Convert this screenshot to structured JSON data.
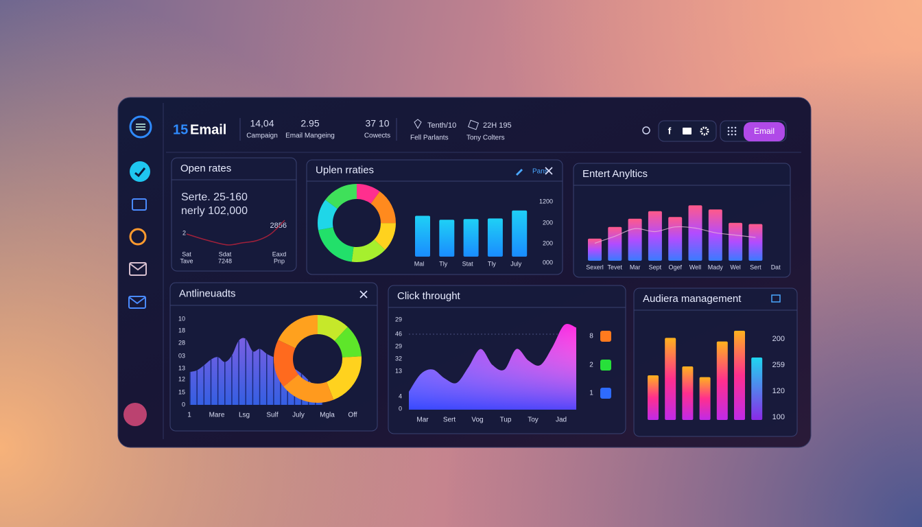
{
  "header": {
    "logo_num": "15",
    "logo": "Email",
    "stats": [
      {
        "value": "14,04",
        "label": "Campaign"
      },
      {
        "value": "2.95",
        "label": "Email Mangeing"
      },
      {
        "value": "37 10",
        "label": "Cowects"
      }
    ],
    "stats2": [
      {
        "value": "Tenth/10",
        "label": "Fell Parlants"
      },
      {
        "value": "22H 195",
        "label": "Tony Colters"
      }
    ],
    "button": "Email"
  },
  "open_rates": {
    "title": "Open rates",
    "line1": "Serte. 25-160",
    "line2": "nerly 102,000",
    "note": "2856",
    "axis": "2",
    "x_labels": [
      [
        "Sat",
        "Tave"
      ],
      [
        "Sdat",
        "7248"
      ],
      [
        "Eaxd",
        "Pnp"
      ]
    ],
    "line": [
      30,
      22,
      15,
      10,
      14,
      18,
      30,
      55
    ]
  },
  "uplen": {
    "title": "Uplen rraties",
    "link": "Pans",
    "donut": [
      {
        "color": "#ff2f8e",
        "value": 10
      },
      {
        "color": "#ff8a1e",
        "value": 15
      },
      {
        "color": "#ffd21e",
        "value": 12
      },
      {
        "color": "#a6ef2e",
        "value": 15
      },
      {
        "color": "#22e06a",
        "value": 20
      },
      {
        "color": "#1fd6e8",
        "value": 13
      },
      {
        "color": "#3fe05a",
        "value": 15
      }
    ],
    "categories": [
      "Mal",
      "Tly",
      "Stat",
      "Tly",
      "July"
    ],
    "values": [
      62,
      56,
      57,
      58,
      70
    ],
    "y_labels": [
      "1200",
      "200",
      "200",
      "000"
    ]
  },
  "entert": {
    "title": "Entert Anyltics",
    "categories": [
      "Sexerl",
      "Tevet",
      "Mar",
      "Sept",
      "Ogef",
      "Well",
      "Mady",
      "Wel",
      "Sert",
      "Dat"
    ],
    "values": [
      38,
      58,
      72,
      85,
      75,
      95,
      88,
      65,
      63,
      null
    ],
    "line": [
      30,
      42,
      55,
      50,
      58,
      56,
      48,
      44,
      40,
      null
    ]
  },
  "antline": {
    "title": "Antlineuadts",
    "y_labels": [
      "10",
      "18",
      "28",
      "03",
      "13",
      "12",
      "15",
      "0"
    ],
    "x_labels": [
      "1",
      "Mare",
      "Lsg",
      "Sulf",
      "July",
      "Mgla",
      "Off"
    ],
    "area": [
      40,
      42,
      48,
      55,
      58,
      52,
      60,
      78,
      80,
      65,
      68,
      62,
      58,
      55,
      50,
      44,
      38,
      30,
      22,
      14
    ],
    "donut": [
      {
        "color": "#c6e82a",
        "value": 12
      },
      {
        "color": "#5ee62a",
        "value": 12
      },
      {
        "color": "#ffd21e",
        "value": 20
      },
      {
        "color": "#ff9a1e",
        "value": 20
      },
      {
        "color": "#ff6a1e",
        "value": 18
      },
      {
        "color": "#ffa11e",
        "value": 18
      }
    ]
  },
  "click": {
    "title": "Click throught",
    "y_labels": [
      "29",
      "46",
      "29",
      "32",
      "13",
      "4",
      "0"
    ],
    "x_labels": [
      "Mar",
      "Sert",
      "Vog",
      "Tup",
      "Toy",
      "Jad"
    ],
    "area": [
      20,
      40,
      45,
      35,
      30,
      48,
      68,
      50,
      45,
      68,
      55,
      50,
      70,
      95,
      92
    ],
    "legend": [
      {
        "label": "8",
        "color": "#ff7a1e"
      },
      {
        "label": "2",
        "color": "#27e03a"
      },
      {
        "label": "1",
        "color": "#2e6bff"
      }
    ]
  },
  "audience": {
    "title": "Audiera management",
    "y_labels": [
      "200",
      "259",
      "120",
      "100"
    ],
    "values": [
      50,
      92,
      60,
      48,
      88,
      100,
      70
    ]
  }
}
